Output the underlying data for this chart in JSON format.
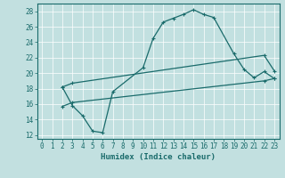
{
  "xlabel": "Humidex (Indice chaleur)",
  "xlim": [
    -0.5,
    23.5
  ],
  "ylim": [
    11.5,
    29
  ],
  "xticks": [
    0,
    1,
    2,
    3,
    4,
    5,
    6,
    7,
    8,
    9,
    10,
    11,
    12,
    13,
    14,
    15,
    16,
    17,
    18,
    19,
    20,
    21,
    22,
    23
  ],
  "yticks": [
    12,
    14,
    16,
    18,
    20,
    22,
    24,
    26,
    28
  ],
  "bg_color": "#c2e0e0",
  "line_color": "#1a6b6b",
  "curve1_x": [
    2,
    3,
    4,
    5,
    6,
    7,
    10,
    11,
    12,
    13,
    14,
    15,
    16,
    17,
    19,
    20,
    21,
    22,
    23
  ],
  "curve1_y": [
    18.2,
    15.8,
    14.5,
    12.5,
    12.3,
    17.6,
    20.7,
    24.5,
    26.6,
    27.1,
    27.6,
    28.2,
    27.6,
    27.2,
    22.5,
    20.5,
    19.4,
    20.2,
    19.3
  ],
  "curve2_x": [
    2,
    3,
    22,
    23
  ],
  "curve2_y": [
    18.2,
    18.7,
    22.3,
    20.3
  ],
  "curve3_x": [
    2,
    3,
    22,
    23
  ],
  "curve3_y": [
    15.7,
    16.2,
    19.0,
    19.3
  ],
  "marker_size": 2.5
}
